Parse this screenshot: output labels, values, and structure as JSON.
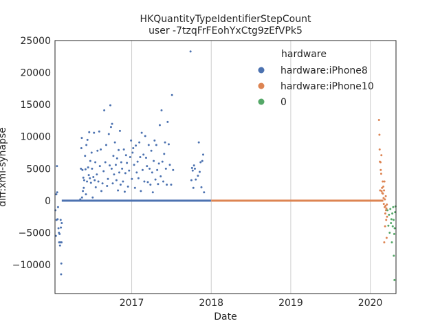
{
  "chart_data": {
    "type": "scatter",
    "title": "HKQuantityTypeIdentifierStepCount",
    "subtitle": "user -7tzqFrFEohYxCtg9zEfVPk5",
    "xlabel": "Date",
    "ylabel": "diff:xml-synapse",
    "xlim": [
      "2016-01-15",
      "2020-04-28"
    ],
    "ylim": [
      -14500,
      25000
    ],
    "xticks": [
      "2017",
      "2018",
      "2019",
      "2020"
    ],
    "yticks": [
      -10000,
      -5000,
      0,
      5000,
      10000,
      15000,
      20000,
      25000
    ],
    "grid": "vertical",
    "legend": {
      "title": "hardware",
      "placement": "top-right",
      "entries": [
        " hardware:iPhone8",
        " hardware:iPhone10",
        "0"
      ]
    },
    "colors": {
      "hardware:iPhone8": "#4c72b0",
      "hardware:iPhone10": "#dd8452",
      "0": "#55a868"
    },
    "series": [
      {
        "name": " hardware:iPhone8",
        "zero_line": [
          "2016-02-15",
          "2017-12-31"
        ],
        "points": [
          [
            "2016-01-17",
            -1500
          ],
          [
            "2016-01-19",
            -5500
          ],
          [
            "2016-01-21",
            1000
          ],
          [
            "2016-01-22",
            -3000
          ],
          [
            "2016-01-24",
            5400
          ],
          [
            "2016-01-25",
            1300
          ],
          [
            "2016-01-27",
            -2900
          ],
          [
            "2016-01-29",
            -1000
          ],
          [
            "2016-01-31",
            -4300
          ],
          [
            "2016-02-02",
            -5000
          ],
          [
            "2016-02-03",
            -6500
          ],
          [
            "2016-02-05",
            -5200
          ],
          [
            "2016-02-07",
            -7000
          ],
          [
            "2016-02-08",
            -6500
          ],
          [
            "2016-02-10",
            -3000
          ],
          [
            "2016-02-11",
            -4200
          ],
          [
            "2016-02-12",
            -11500
          ],
          [
            "2016-02-13",
            -9800
          ],
          [
            "2016-02-14",
            -6500
          ],
          [
            "2016-02-15",
            -3500
          ],
          [
            "2016-05-10",
            200
          ],
          [
            "2016-05-13",
            5000
          ],
          [
            "2016-05-15",
            8200
          ],
          [
            "2016-05-17",
            9800
          ],
          [
            "2016-05-18",
            500
          ],
          [
            "2016-05-20",
            4800
          ],
          [
            "2016-05-22",
            1500
          ],
          [
            "2016-05-24",
            3600
          ],
          [
            "2016-05-26",
            2000
          ],
          [
            "2016-05-28",
            3200
          ],
          [
            "2016-06-01",
            7000
          ],
          [
            "2016-06-03",
            4900
          ],
          [
            "2016-06-05",
            1000
          ],
          [
            "2016-06-07",
            8700
          ],
          [
            "2016-06-10",
            3000
          ],
          [
            "2016-06-12",
            9500
          ],
          [
            "2016-06-15",
            5200
          ],
          [
            "2016-06-18",
            4000
          ],
          [
            "2016-06-20",
            10700
          ],
          [
            "2016-06-23",
            3500
          ],
          [
            "2016-06-25",
            6200
          ],
          [
            "2016-06-28",
            2800
          ],
          [
            "2016-07-01",
            7500
          ],
          [
            "2016-07-03",
            5000
          ],
          [
            "2016-07-06",
            500
          ],
          [
            "2016-07-09",
            3700
          ],
          [
            "2016-07-12",
            10600
          ],
          [
            "2016-07-15",
            3200
          ],
          [
            "2016-07-18",
            6000
          ],
          [
            "2016-07-20",
            2100
          ],
          [
            "2016-07-25",
            4100
          ],
          [
            "2016-07-28",
            7800
          ],
          [
            "2016-08-01",
            3000
          ],
          [
            "2016-08-05",
            10800
          ],
          [
            "2016-08-08",
            5400
          ],
          [
            "2016-08-12",
            8000
          ],
          [
            "2016-08-15",
            1500
          ],
          [
            "2016-08-20",
            2700
          ],
          [
            "2016-08-25",
            4600
          ],
          [
            "2016-08-28",
            14100
          ],
          [
            "2016-09-02",
            6000
          ],
          [
            "2016-09-06",
            8700
          ],
          [
            "2016-09-10",
            2300
          ],
          [
            "2016-09-14",
            3400
          ],
          [
            "2016-09-18",
            10400
          ],
          [
            "2016-09-22",
            5500
          ],
          [
            "2016-09-25",
            14900
          ],
          [
            "2016-09-28",
            11500
          ],
          [
            "2016-10-01",
            5000
          ],
          [
            "2016-10-03",
            12000
          ],
          [
            "2016-10-06",
            2700
          ],
          [
            "2016-10-09",
            7000
          ],
          [
            "2016-10-12",
            4100
          ],
          [
            "2016-10-16",
            9100
          ],
          [
            "2016-10-20",
            5600
          ],
          [
            "2016-10-23",
            3200
          ],
          [
            "2016-10-26",
            6600
          ],
          [
            "2016-10-30",
            1600
          ],
          [
            "2016-11-02",
            7900
          ],
          [
            "2016-11-05",
            4400
          ],
          [
            "2016-11-08",
            10900
          ],
          [
            "2016-11-11",
            2500
          ],
          [
            "2016-11-14",
            6000
          ],
          [
            "2016-11-18",
            5000
          ],
          [
            "2016-11-22",
            3000
          ],
          [
            "2016-11-26",
            8000
          ],
          [
            "2016-11-30",
            1400
          ],
          [
            "2016-12-03",
            4300
          ],
          [
            "2016-12-06",
            7100
          ],
          [
            "2016-12-10",
            5900
          ],
          [
            "2016-12-15",
            2200
          ],
          [
            "2016-12-20",
            4700
          ],
          [
            "2016-12-25",
            6800
          ],
          [
            "2016-12-29",
            9400
          ],
          [
            "2017-01-02",
            3400
          ],
          [
            "2017-01-05",
            7500
          ],
          [
            "2017-01-08",
            8200
          ],
          [
            "2017-01-12",
            5600
          ],
          [
            "2017-01-16",
            2000
          ],
          [
            "2017-01-20",
            8600
          ],
          [
            "2017-01-24",
            4400
          ],
          [
            "2017-01-28",
            6100
          ],
          [
            "2017-02-01",
            3500
          ],
          [
            "2017-02-05",
            9100
          ],
          [
            "2017-02-09",
            6800
          ],
          [
            "2017-02-12",
            1500
          ],
          [
            "2017-02-16",
            10600
          ],
          [
            "2017-02-20",
            4800
          ],
          [
            "2017-02-24",
            7200
          ],
          [
            "2017-02-28",
            3000
          ],
          [
            "2017-03-04",
            10100
          ],
          [
            "2017-03-08",
            6700
          ],
          [
            "2017-03-12",
            5400
          ],
          [
            "2017-03-16",
            2900
          ],
          [
            "2017-03-20",
            8700
          ],
          [
            "2017-03-24",
            5000
          ],
          [
            "2017-03-28",
            2500
          ],
          [
            "2017-04-01",
            7800
          ],
          [
            "2017-04-05",
            4400
          ],
          [
            "2017-04-08",
            1300
          ],
          [
            "2017-04-12",
            6200
          ],
          [
            "2017-04-16",
            9400
          ],
          [
            "2017-04-20",
            3300
          ],
          [
            "2017-04-24",
            8700
          ],
          [
            "2017-04-28",
            4800
          ],
          [
            "2017-05-02",
            2600
          ],
          [
            "2017-05-06",
            5800
          ],
          [
            "2017-05-10",
            11800
          ],
          [
            "2017-05-14",
            3800
          ],
          [
            "2017-05-18",
            14100
          ],
          [
            "2017-05-22",
            6100
          ],
          [
            "2017-05-26",
            3000
          ],
          [
            "2017-05-30",
            7300
          ],
          [
            "2017-06-03",
            9100
          ],
          [
            "2017-06-07",
            5000
          ],
          [
            "2017-06-11",
            2500
          ],
          [
            "2017-06-15",
            12300
          ],
          [
            "2017-06-20",
            8800
          ],
          [
            "2017-06-25",
            5600
          ],
          [
            "2017-07-01",
            2500
          ],
          [
            "2017-07-05",
            16500
          ],
          [
            "2017-07-10",
            4800
          ],
          [
            "2017-09-28",
            23300
          ],
          [
            "2017-10-02",
            3200
          ],
          [
            "2017-10-05",
            5100
          ],
          [
            "2017-10-08",
            4700
          ],
          [
            "2017-10-11",
            2000
          ],
          [
            "2017-10-14",
            5500
          ],
          [
            "2017-10-18",
            5000
          ],
          [
            "2017-10-22",
            3300
          ],
          [
            "2017-11-01",
            3900
          ],
          [
            "2017-11-05",
            9100
          ],
          [
            "2017-11-09",
            4500
          ],
          [
            "2017-11-13",
            6000
          ],
          [
            "2017-11-17",
            2100
          ],
          [
            "2017-11-21",
            6200
          ],
          [
            "2017-11-25",
            7200
          ],
          [
            "2017-11-29",
            1300
          ]
        ]
      },
      {
        "name": " hardware:iPhone10",
        "zero_line": [
          "2018-01-01",
          "2020-03-01"
        ],
        "points": [
          [
            "2020-02-10",
            12600
          ],
          [
            "2020-02-12",
            10300
          ],
          [
            "2020-02-13",
            8000
          ],
          [
            "2020-02-14",
            6100
          ],
          [
            "2020-02-15",
            1600
          ],
          [
            "2020-02-17",
            6000
          ],
          [
            "2020-02-18",
            4800
          ],
          [
            "2020-02-20",
            4200
          ],
          [
            "2020-02-21",
            7100
          ],
          [
            "2020-02-22",
            1500
          ],
          [
            "2020-02-24",
            2000
          ],
          [
            "2020-02-25",
            1200
          ],
          [
            "2020-02-27",
            3000
          ],
          [
            "2020-02-28",
            1100
          ],
          [
            "2020-03-01",
            2200
          ],
          [
            "2020-03-02",
            400
          ],
          [
            "2020-03-03",
            -500
          ],
          [
            "2020-03-04",
            1600
          ],
          [
            "2020-03-05",
            -6500
          ],
          [
            "2020-03-06",
            3000
          ],
          [
            "2020-03-07",
            -1000
          ],
          [
            "2020-03-08",
            200
          ],
          [
            "2020-03-09",
            -4000
          ],
          [
            "2020-03-10",
            -2000
          ],
          [
            "2020-03-11",
            -800
          ],
          [
            "2020-03-12",
            700
          ],
          [
            "2020-03-13",
            -1500
          ],
          [
            "2020-03-14",
            -3000
          ],
          [
            "2020-03-15",
            -1200
          ],
          [
            "2020-03-16",
            -5800
          ],
          [
            "2020-03-17",
            -600
          ],
          [
            "2020-03-18",
            -2500
          ]
        ]
      },
      {
        "name": "0",
        "points": [
          [
            "2020-03-20",
            -1500
          ],
          [
            "2020-03-24",
            -3900
          ],
          [
            "2020-03-27",
            -2200
          ],
          [
            "2020-03-30",
            -5000
          ],
          [
            "2020-04-02",
            -1300
          ],
          [
            "2020-04-05",
            -3500
          ],
          [
            "2020-04-07",
            -2900
          ],
          [
            "2020-04-09",
            -6500
          ],
          [
            "2020-04-11",
            -2000
          ],
          [
            "2020-04-13",
            -4000
          ],
          [
            "2020-04-15",
            -1000
          ],
          [
            "2020-04-17",
            -3000
          ],
          [
            "2020-04-18",
            -8600
          ],
          [
            "2020-04-20",
            -5200
          ],
          [
            "2020-04-21",
            -12400
          ],
          [
            "2020-04-22",
            -4300
          ],
          [
            "2020-04-24",
            -1800
          ],
          [
            "2020-04-26",
            -900
          ]
        ]
      }
    ]
  }
}
